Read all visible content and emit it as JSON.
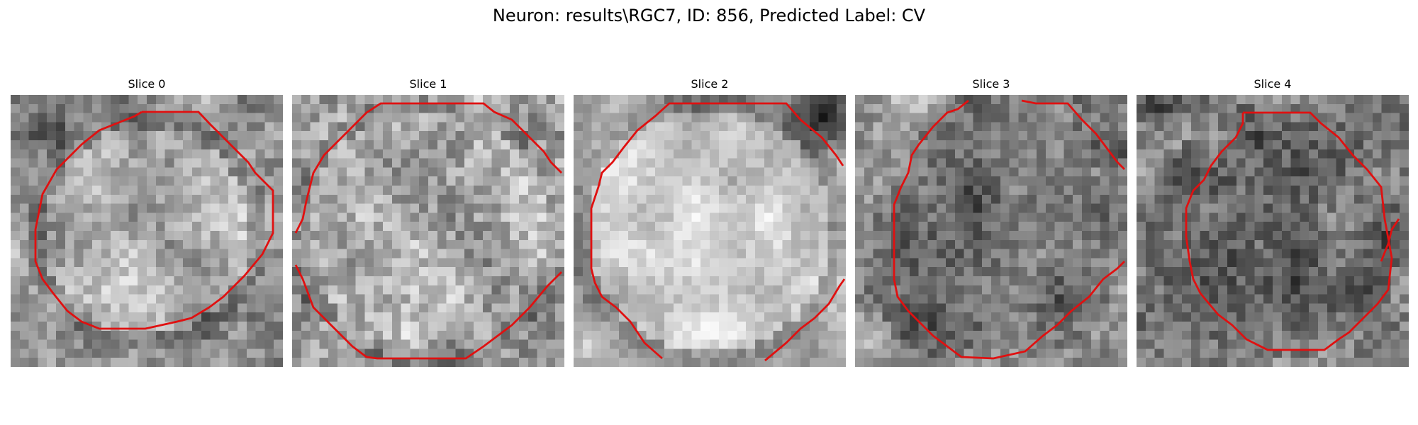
{
  "figure": {
    "title": "Neuron: results\\RGC7, ID: 856, Predicted Label: CV",
    "contour_color": "#e01010",
    "colormap": "gray"
  },
  "panels": [
    {
      "title": "Slice 0"
    },
    {
      "title": "Slice 1"
    },
    {
      "title": "Slice 2"
    },
    {
      "title": "Slice 3"
    },
    {
      "title": "Slice 4"
    }
  ]
}
